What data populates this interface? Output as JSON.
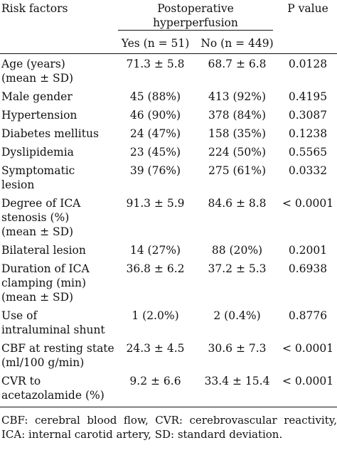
{
  "header": {
    "risk_factors": "Risk factors",
    "postop_line1": "Postoperative",
    "postop_line2": "hyperperfusion",
    "p_value": "P value",
    "yes_col": "Yes (n = 51)",
    "no_col": "No (n = 449)"
  },
  "rows": [
    {
      "factor_lines": [
        "Age (years)",
        "(mean ± SD)"
      ],
      "yes": "71.3 ± 5.8",
      "no": "68.7 ± 6.8",
      "p": "0.0128"
    },
    {
      "factor_lines": [
        "Male gender"
      ],
      "yes": "45 (88%)",
      "no": "413 (92%)",
      "p": "0.4195"
    },
    {
      "factor_lines": [
        "Hypertension"
      ],
      "yes": "46 (90%)",
      "no": "378 (84%)",
      "p": "0.3087"
    },
    {
      "factor_lines": [
        "Diabetes mellitus"
      ],
      "yes": "24 (47%)",
      "no": "158 (35%)",
      "p": "0.1238"
    },
    {
      "factor_lines": [
        "Dyslipidemia"
      ],
      "yes": "23 (45%)",
      "no": "224 (50%)",
      "p": "0.5565"
    },
    {
      "factor_lines": [
        "Symptomatic",
        "lesion"
      ],
      "yes": "39 (76%)",
      "no": "275 (61%)",
      "p": "0.0332"
    },
    {
      "factor_lines": [
        "Degree of ICA",
        "stenosis (%)",
        "(mean ± SD)"
      ],
      "yes": "91.3 ± 5.9",
      "no": "84.6 ± 8.8",
      "p": "< 0.0001"
    },
    {
      "factor_lines": [
        "Bilateral lesion"
      ],
      "yes": "14 (27%)",
      "no": "88 (20%)",
      "p": "0.2001"
    },
    {
      "factor_lines": [
        "Duration of ICA",
        "clamping (min)",
        "(mean ± SD)"
      ],
      "yes": "36.8 ± 6.2",
      "no": "37.2 ± 5.3",
      "p": "0.6938"
    },
    {
      "factor_lines": [
        "Use of",
        "intraluminal shunt"
      ],
      "yes": "1 (2.0%)",
      "no": "2 (0.4%)",
      "p": "0.8776"
    },
    {
      "factor_lines": [
        "CBF at resting state",
        "(ml/100 g/min)"
      ],
      "yes": "24.3 ± 4.5",
      "no": "30.6 ± 7.3",
      "p": "< 0.0001"
    },
    {
      "factor_lines": [
        "CVR to",
        "acetazolamide (%)"
      ],
      "yes": "9.2 ± 6.6",
      "no": "33.4 ± 15.4",
      "p": "< 0.0001"
    }
  ],
  "footnote": "CBF: cerebral blood flow, CVR: cerebrovascular reactivity, ICA: internal carotid artery, SD: standard deviation."
}
